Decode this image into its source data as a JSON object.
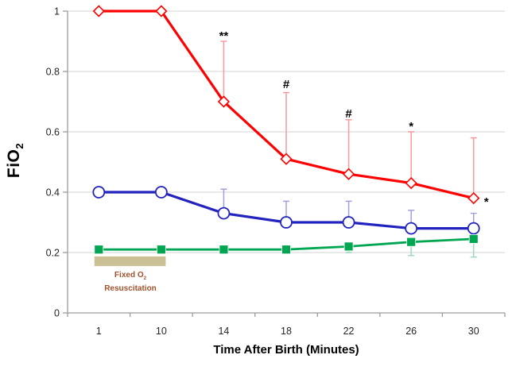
{
  "figure": {
    "background": "#FFFFFF",
    "axis_color": "#9C9C9C",
    "grid_color": "#DCDCDC",
    "tick_text_color": "#262626",
    "annotation_color": "#000000"
  },
  "chart_data": {
    "type": "line",
    "title": "",
    "xlabel": "Time After Birth (Minutes)",
    "ylabel": {
      "base": "FiO",
      "sub": "2"
    },
    "x_categories": [
      "1",
      "10",
      "14",
      "18",
      "22",
      "26",
      "30"
    ],
    "ylim": [
      0,
      1
    ],
    "ytick_labels": [
      "0",
      "0.2",
      "0.4",
      "0.6",
      "0.8",
      "1"
    ],
    "ytick_values": [
      0,
      0.2,
      0.4,
      0.6,
      0.8,
      1
    ],
    "grid": "horizontal",
    "legend_position": "none",
    "series": [
      {
        "id": "red-diamond-series",
        "marker": "diamond",
        "line_color": "#FF0000",
        "marker_fill": "#FFFFFF",
        "error_bar_color": "#F7999C",
        "error_direction": "up",
        "values": [
          1.0,
          1.0,
          0.7,
          0.51,
          0.46,
          0.43,
          0.38
        ],
        "error_tops": [
          null,
          null,
          0.9,
          0.73,
          0.64,
          0.6,
          0.58
        ]
      },
      {
        "id": "blue-circle-series",
        "marker": "circle",
        "line_color": "#2222BE",
        "marker_fill": "#FFFFFF",
        "error_bar_color": "#9FA0DC",
        "error_direction": "up",
        "values": [
          0.4,
          0.4,
          0.33,
          0.3,
          0.3,
          0.28,
          0.28
        ],
        "error_tops": [
          null,
          null,
          0.41,
          0.37,
          0.37,
          0.34,
          0.33
        ]
      },
      {
        "id": "green-square-series",
        "marker": "square",
        "line_color": "#00A651",
        "marker_fill": "#00A651",
        "error_bar_color": "#A0D8BE",
        "error_direction": "down",
        "values": [
          0.21,
          0.21,
          0.21,
          0.21,
          0.22,
          0.235,
          0.245
        ],
        "error_bottoms": [
          null,
          null,
          null,
          null,
          0.2,
          0.19,
          0.185
        ]
      }
    ],
    "annotations": [
      {
        "text": "**",
        "x_index": 2,
        "y": 0.905,
        "align": "center"
      },
      {
        "text": "#",
        "x_index": 3,
        "y": 0.745,
        "align": "center"
      },
      {
        "text": "#",
        "x_index": 4,
        "y": 0.647,
        "align": "center"
      },
      {
        "text": "*",
        "x_index": 5,
        "y": 0.605,
        "align": "center"
      },
      {
        "text": "*",
        "x_index": 6,
        "y": 0.355,
        "align": "right-of-point",
        "x_offset": 13
      }
    ],
    "region_label": {
      "text_base": "Fixed O",
      "text_sub": "2",
      "text_line2": "Resuscitation",
      "box_fill": "#CBBF96",
      "text_color": "#A0522D",
      "x_from_index": 0,
      "x_to_index": 1,
      "y_top": 0.187,
      "y_bottom": 0.155
    }
  }
}
